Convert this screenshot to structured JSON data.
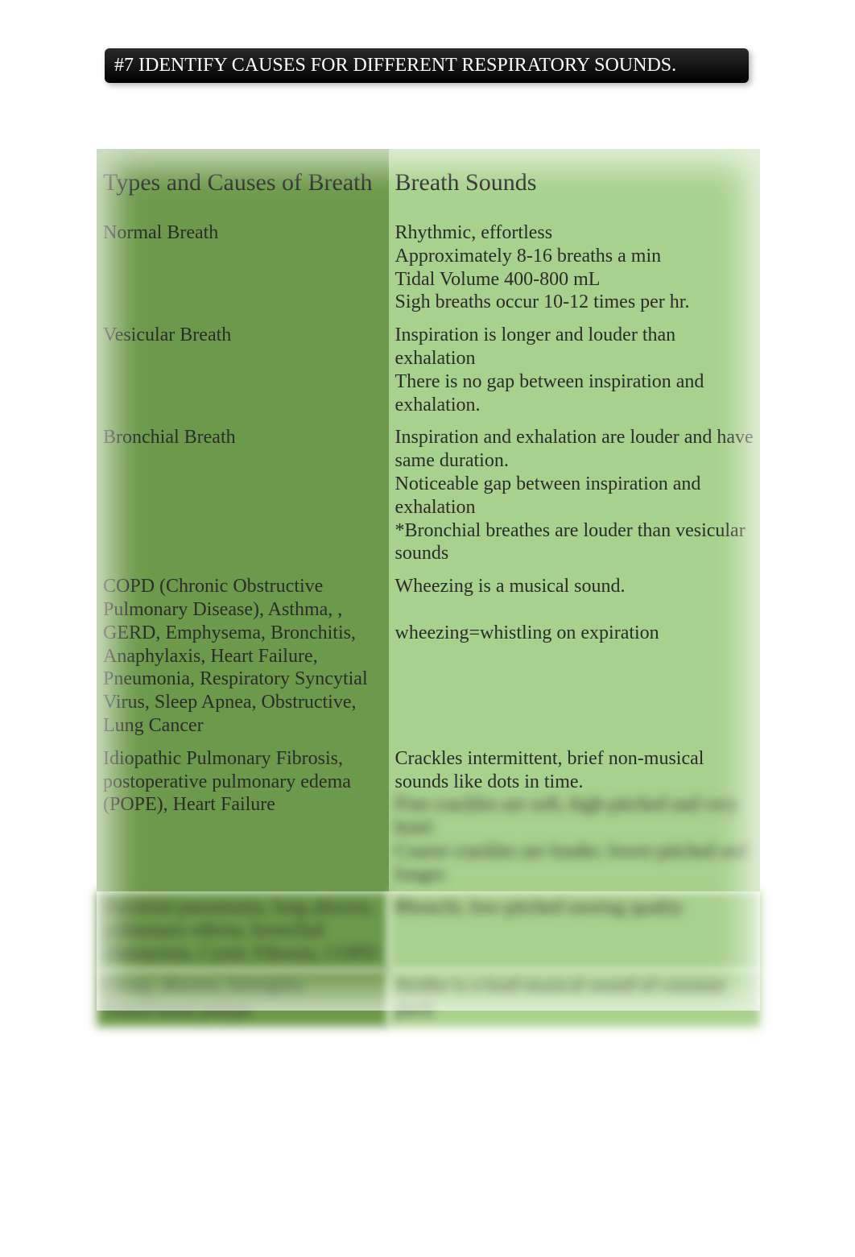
{
  "title": "#7 IDENTIFY CAUSES FOR DIFFERENT RESPIRATORY SOUNDS.",
  "colors": {
    "title_bg": "#000000",
    "title_text": "#ffffff",
    "col_left_bg": "#6d9a4a",
    "col_right_bg": "#a8d18d",
    "text": "#2b2b2b"
  },
  "table": {
    "header": {
      "left": "Types and Causes of Breath",
      "right": "Breath Sounds"
    },
    "rows": [
      {
        "left": "Normal Breath",
        "right": "Rhythmic, effortless\nApproximately 8-16 breaths a min\nTidal Volume 400-800 mL\nSigh breaths occur 10-12 times per hr."
      },
      {
        "left": "Vesicular Breath",
        "right": "Inspiration is longer and louder than exhalation\nThere is no gap between inspiration and exhalation."
      },
      {
        "left": "Bronchial Breath",
        "right": "Inspiration and exhalation are louder and have same duration.\nNoticeable gap between inspiration and exhalation\n*Bronchial breathes are louder than vesicular sounds"
      },
      {
        "left": "COPD (Chronic Obstructive Pulmonary Disease), Asthma, , GERD, Emphysema, Bronchitis, Anaphylaxis, Heart Failure, Pneumonia, Respiratory Syncytial Virus, Sleep Apnea, Obstructive, Lung Cancer",
        "right": "Wheezing is a musical sound.\n\nwheezing=whistling on expiration"
      },
      {
        "left": "Idiopathic Pulmonary Fibrosis, postoperative pulmonary edema (POPE), Heart Failure",
        "right": "Crackles intermittent, brief non-musical sounds like dots in time.",
        "right_blur": "Fine crackles are soft, high-pitched and very brief.\nCoarse crackles are louder, lower-pitched and longer."
      },
      {
        "left_blur": "Bacterial pneumonia, lung abscess, pulmonary edema, bronchial obstruction, Cystic Fibrosis, COPD",
        "right_blur": "Rhonchi, low-pitched snoring quality"
      },
      {
        "left_blur": "Croup, abscess, laryngitis, Tonsil/nasal polyps",
        "right_blur": "Stridor is a loud musical sound of constant pitch"
      }
    ]
  }
}
